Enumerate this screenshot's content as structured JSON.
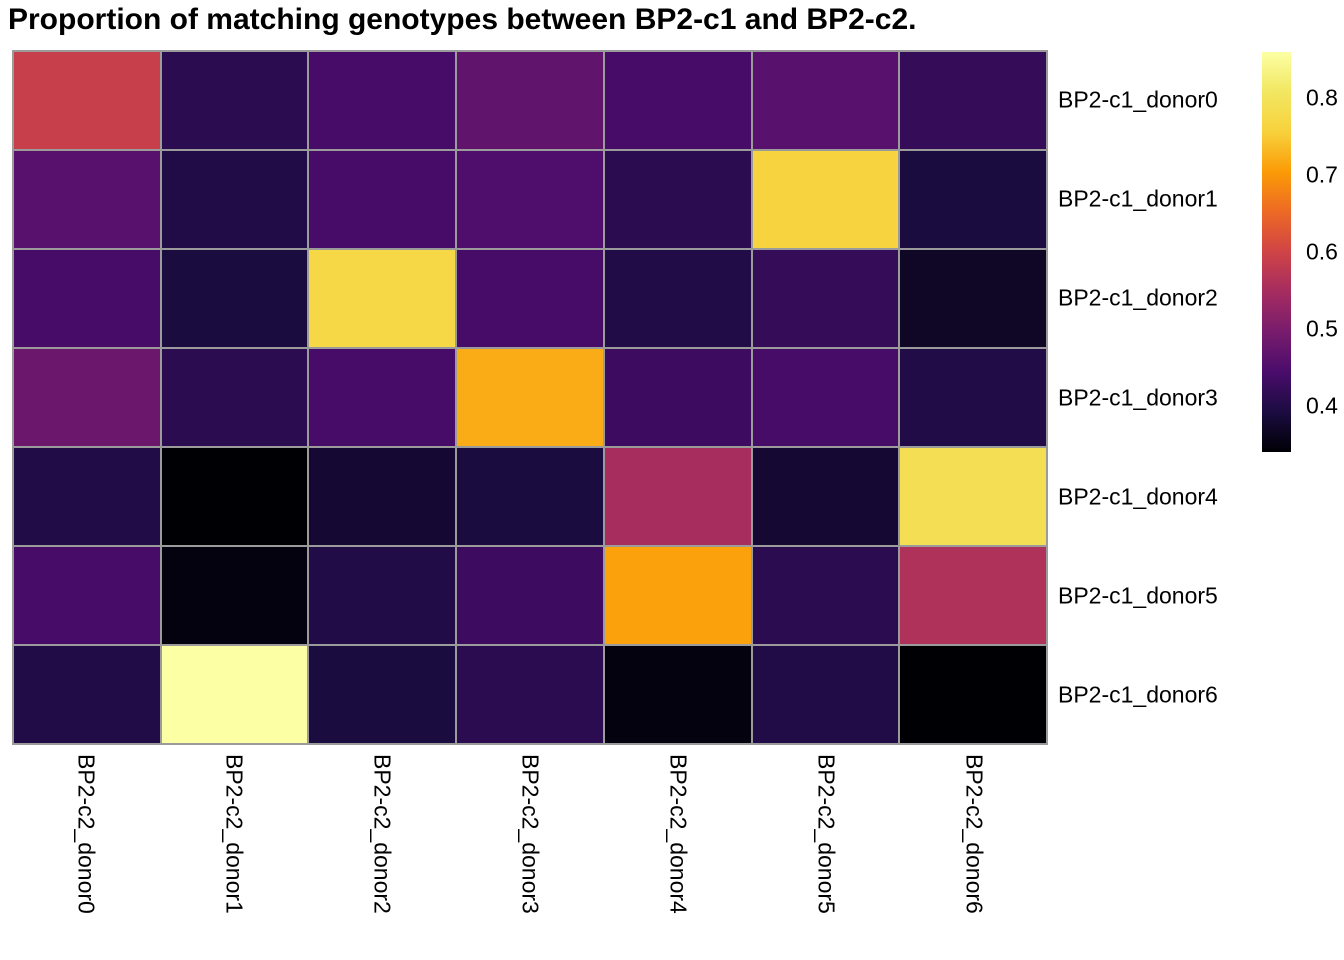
{
  "title": "Proportion of matching genotypes between BP2-c1 and BP2-c2.",
  "chart_data": {
    "type": "heatmap",
    "title": "Proportion of matching genotypes between BP2-c1 and BP2-c2.",
    "x_categories": [
      "BP2-c2_donor0",
      "BP2-c2_donor1",
      "BP2-c2_donor2",
      "BP2-c2_donor3",
      "BP2-c2_donor4",
      "BP2-c2_donor5",
      "BP2-c2_donor6"
    ],
    "y_categories": [
      "BP2-c1_donor0",
      "BP2-c1_donor1",
      "BP2-c1_donor2",
      "BP2-c1_donor3",
      "BP2-c1_donor4",
      "BP2-c1_donor5",
      "BP2-c1_donor6"
    ],
    "values": [
      [
        0.59,
        0.41,
        0.44,
        0.47,
        0.44,
        0.46,
        0.42
      ],
      [
        0.46,
        0.4,
        0.44,
        0.45,
        0.41,
        0.76,
        0.39
      ],
      [
        0.44,
        0.39,
        0.77,
        0.44,
        0.4,
        0.42,
        0.37
      ],
      [
        0.48,
        0.41,
        0.44,
        0.72,
        0.43,
        0.44,
        0.4
      ],
      [
        0.4,
        0.34,
        0.38,
        0.39,
        0.55,
        0.38,
        0.79
      ],
      [
        0.44,
        0.35,
        0.4,
        0.43,
        0.71,
        0.41,
        0.56
      ],
      [
        0.4,
        0.86,
        0.39,
        0.41,
        0.35,
        0.4,
        0.34
      ]
    ],
    "vmin": 0.34,
    "vmax": 0.86,
    "colormap": "inferno",
    "colormap_anchors": [
      {
        "t": 0.0,
        "color": "#000004"
      },
      {
        "t": 0.1,
        "color": "#1b0c41"
      },
      {
        "t": 0.2,
        "color": "#4a0c6b"
      },
      {
        "t": 0.3,
        "color": "#781c6d"
      },
      {
        "t": 0.4,
        "color": "#a52c60"
      },
      {
        "t": 0.5,
        "color": "#cf4446"
      },
      {
        "t": 0.6,
        "color": "#ed6925"
      },
      {
        "t": 0.7,
        "color": "#fb9b06"
      },
      {
        "t": 0.8,
        "color": "#f7d13c"
      },
      {
        "t": 0.9,
        "color": "#f2e761"
      },
      {
        "t": 1.0,
        "color": "#fcffa4"
      }
    ],
    "colorbar_ticks": [
      "0.8",
      "0.7",
      "0.6",
      "0.5",
      "0.4"
    ],
    "grid_line_color": "#9b9b9b",
    "grid": true,
    "legend_position": "right"
  }
}
